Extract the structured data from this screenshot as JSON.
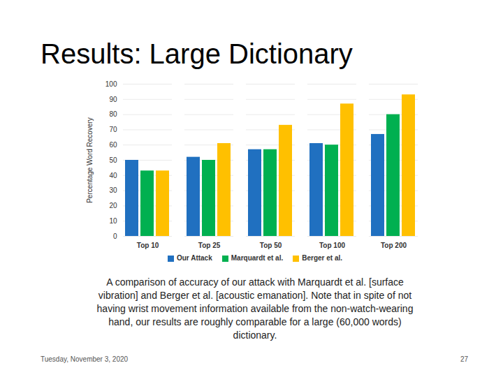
{
  "chart_data": {
    "type": "bar",
    "title": "Results: Large Dictionary",
    "y_label": "Percentage Word Recovery",
    "categories": [
      "Top 10",
      "Top 25",
      "Top 50",
      "Top 100",
      "Top 200"
    ],
    "series": [
      {
        "name": "Our Attack",
        "color": "#2070c0",
        "values": [
          50,
          52,
          57,
          61,
          67
        ]
      },
      {
        "name": "Marquardt et al.",
        "color": "#00b050",
        "values": [
          43,
          50,
          57,
          60,
          80
        ]
      },
      {
        "name": "Berger et al.",
        "color": "#ffc000",
        "values": [
          43,
          61,
          73,
          87,
          93
        ]
      }
    ],
    "ylim": [
      0,
      100
    ],
    "yticks": [
      0,
      10,
      20,
      30,
      40,
      50,
      60,
      70,
      80,
      90,
      100
    ],
    "grid": true,
    "legend": "bottom",
    "caption": "A comparison of accuracy of our attack with Marquardt et al. [surface vibration] and Berger et al. [acoustic emanation]. Note that in spite of not having wrist movement information available from the non-watch-wearing hand, our results are roughly comparable for a large (60,000 words) dictionary.",
    "footer": "Tuesday, November 3, 2020",
    "page_number": "27"
  }
}
